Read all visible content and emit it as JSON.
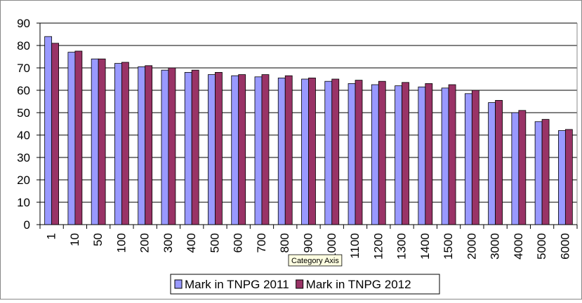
{
  "chart_data": {
    "type": "bar",
    "categories": [
      "1",
      "10",
      "50",
      "100",
      "200",
      "300",
      "400",
      "500",
      "600",
      "700",
      "800",
      "900",
      "1000",
      "1100",
      "1200",
      "1300",
      "1400",
      "1500",
      "2000",
      "3000",
      "4000",
      "5000",
      "6000"
    ],
    "series": [
      {
        "name": "Mark in TNPG 2011",
        "color": "#9999ff",
        "values": [
          84,
          77,
          74,
          72,
          70.5,
          69,
          68,
          67,
          66.5,
          66,
          65.5,
          65,
          64,
          63,
          62.5,
          62,
          61.5,
          61,
          58.5,
          54.5,
          50,
          46,
          42
        ]
      },
      {
        "name": "Mark in TNPG 2012",
        "color": "#993366",
        "values": [
          81,
          77.5,
          74,
          72.5,
          71,
          70,
          69,
          68,
          67,
          67,
          66.5,
          65.5,
          65,
          64.5,
          64,
          63.5,
          63,
          62.5,
          60,
          55.5,
          51,
          47,
          42.5
        ]
      }
    ],
    "ylim": [
      0,
      90
    ],
    "yticks": [
      0,
      10,
      20,
      30,
      40,
      50,
      60,
      70,
      80,
      90
    ],
    "grid": true,
    "legend": "bottom",
    "tooltip": "Category Axis"
  }
}
